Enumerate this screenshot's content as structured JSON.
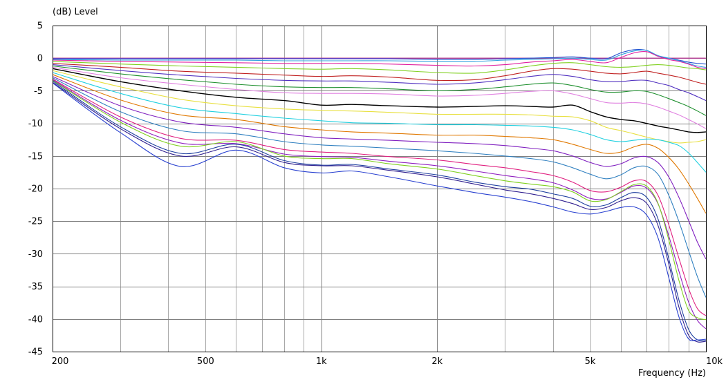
{
  "chart_data": {
    "type": "line",
    "ylabel": "(dB)  Level",
    "xlabel": "Frequency  (Hz)",
    "x_scale": "log",
    "xlim": [
      200,
      10000
    ],
    "ylim": [
      -45,
      5
    ],
    "grid": true,
    "legend": "none",
    "y_ticks": [
      5,
      0,
      -5,
      -10,
      -15,
      -20,
      -25,
      -30,
      -35,
      -40,
      -45
    ],
    "y_tick_labels": [
      "5",
      "0",
      "-5",
      "-10",
      "-15",
      "-20",
      "-25",
      "-30",
      "-35",
      "-40",
      "-45"
    ],
    "x_ticks": [
      200,
      500,
      1000,
      2000,
      5000,
      10000
    ],
    "x_tick_labels": [
      "200",
      "500",
      "1k",
      "2k",
      "5k",
      "10k"
    ],
    "x": [
      200,
      300,
      430,
      600,
      800,
      1000,
      1200,
      1500,
      2000,
      2500,
      3000,
      3500,
      4000,
      4500,
      5000,
      5500,
      6000,
      6500,
      7000,
      7500,
      8000,
      8500,
      9000,
      9500,
      10000
    ],
    "series": [
      {
        "color": "#e07000",
        "values": [
          0,
          0,
          0,
          0,
          0,
          0,
          0,
          0,
          0,
          0,
          0,
          0,
          0,
          0,
          0,
          0,
          0,
          0,
          0,
          0,
          0,
          0,
          0,
          0,
          0
        ]
      },
      {
        "color": "#b030b0",
        "values": [
          0,
          0,
          0,
          0,
          0,
          0,
          0,
          0,
          0,
          0,
          0,
          0,
          0,
          0,
          0,
          0,
          0,
          0,
          0,
          0,
          0,
          0,
          0,
          0,
          0
        ]
      },
      {
        "color": "#2050d0",
        "values": [
          -0.1,
          -0.1,
          -0.1,
          -0.1,
          -0.1,
          -0.1,
          -0.1,
          -0.1,
          -0.2,
          -0.2,
          -0.1,
          0,
          0.1,
          0.2,
          0,
          -0.1,
          0.8,
          1.3,
          1.2,
          0.3,
          0,
          -0.3,
          -0.6,
          -0.8,
          -0.9
        ]
      },
      {
        "color": "#30a0e0",
        "values": [
          -0.2,
          -0.3,
          -0.3,
          -0.3,
          -0.4,
          -0.4,
          -0.4,
          -0.4,
          -0.5,
          -0.5,
          -0.3,
          -0.2,
          -0.1,
          0,
          -0.2,
          -0.3,
          0.5,
          1.1,
          1.2,
          0.4,
          0,
          -0.4,
          -0.8,
          -1.2,
          -1.4
        ]
      },
      {
        "color": "#e020a0",
        "values": [
          -0.3,
          -0.5,
          -0.6,
          -0.7,
          -0.8,
          -0.8,
          -0.8,
          -0.9,
          -1.1,
          -1.2,
          -1,
          -0.6,
          -0.4,
          -0.2,
          -0.5,
          -0.7,
          0.1,
          0.8,
          1,
          0.3,
          -0.2,
          -0.5,
          -0.9,
          -1.4,
          -1.6
        ]
      },
      {
        "color": "#80d020",
        "values": [
          -0.5,
          -0.9,
          -1.2,
          -1.4,
          -1.6,
          -1.7,
          -1.6,
          -1.8,
          -2.2,
          -2.3,
          -1.8,
          -1.2,
          -0.8,
          -0.7,
          -1,
          -1.3,
          -1.4,
          -1.3,
          -1.1,
          -1,
          -1.1,
          -1.3,
          -1.5,
          -1.6,
          -1.8
        ]
      },
      {
        "color": "#c02020",
        "values": [
          -0.8,
          -1.4,
          -2,
          -2.3,
          -2.6,
          -2.8,
          -2.7,
          -2.9,
          -3.4,
          -3.3,
          -2.7,
          -2,
          -1.6,
          -1.7,
          -2,
          -2.3,
          -2.4,
          -2.2,
          -2,
          -2.3,
          -2.6,
          -2.9,
          -3.3,
          -3.7,
          -4
        ]
      },
      {
        "color": "#5030c0",
        "values": [
          -1,
          -1.9,
          -2.6,
          -3.1,
          -3.4,
          -3.5,
          -3.5,
          -3.7,
          -4,
          -3.8,
          -3.3,
          -2.8,
          -2.5,
          -2.8,
          -3.3,
          -3.6,
          -3.6,
          -3.4,
          -3.4,
          -3.8,
          -4.2,
          -4.8,
          -5.3,
          -5.9,
          -6.5
        ]
      },
      {
        "color": "#209030",
        "values": [
          -1.2,
          -2.4,
          -3.3,
          -4,
          -4.4,
          -4.5,
          -4.5,
          -4.7,
          -5,
          -4.8,
          -4.4,
          -4,
          -3.8,
          -4.2,
          -4.8,
          -5.2,
          -5.2,
          -5,
          -5.1,
          -5.6,
          -6.2,
          -6.8,
          -7.4,
          -8.1,
          -8.8
        ]
      },
      {
        "color": "#e080e0",
        "values": [
          -1.4,
          -3,
          -4,
          -4.8,
          -5.3,
          -5.4,
          -5.4,
          -5.5,
          -5.8,
          -5.7,
          -5.4,
          -5.1,
          -5,
          -5.5,
          -6.2,
          -6.8,
          -6.9,
          -6.8,
          -7,
          -7.5,
          -8.1,
          -8.7,
          -9.4,
          -10.1,
          -10.8
        ]
      },
      {
        "color": "#000000",
        "values": [
          -1.6,
          -3.6,
          -5,
          -6,
          -6.5,
          -7.2,
          -7.1,
          -7.3,
          -7.5,
          -7.4,
          -7.3,
          -7.4,
          -7.5,
          -7.2,
          -8.2,
          -9,
          -9.4,
          -9.6,
          -10,
          -10.4,
          -10.7,
          -11,
          -11.3,
          -11.4,
          -11.3
        ]
      },
      {
        "color": "#e8e040",
        "values": [
          -1.9,
          -4.4,
          -6.3,
          -7.3,
          -7.8,
          -8,
          -8.1,
          -8.3,
          -8.6,
          -8.6,
          -8.6,
          -8.7,
          -8.9,
          -9,
          -9.6,
          -10.6,
          -11.1,
          -11.6,
          -12.1,
          -12.5,
          -12.8,
          -13,
          -12.9,
          -12.8,
          -12.5
        ]
      },
      {
        "color": "#20d0e0",
        "values": [
          -2.2,
          -5.4,
          -7.6,
          -8.5,
          -9.2,
          -9.6,
          -9.9,
          -10,
          -10.2,
          -10.2,
          -10.3,
          -10.4,
          -10.6,
          -11,
          -11.7,
          -12.5,
          -12.8,
          -12.6,
          -12.4,
          -12.5,
          -12.9,
          -13.4,
          -14.5,
          -16,
          -17.5
        ]
      },
      {
        "color": "#e07800",
        "values": [
          -2.5,
          -6.4,
          -8.7,
          -9.4,
          -10.5,
          -11,
          -11.3,
          -11.5,
          -11.8,
          -11.8,
          -12,
          -12.2,
          -12.5,
          -13.2,
          -14,
          -14.6,
          -14.4,
          -13.6,
          -13.2,
          -13.8,
          -15.2,
          -17,
          -19.2,
          -21.5,
          -23.8
        ]
      },
      {
        "color": "#8020c0",
        "values": [
          -2.8,
          -7.3,
          -9.8,
          -10.6,
          -11.6,
          -12.2,
          -12.4,
          -12.6,
          -12.9,
          -13.1,
          -13.4,
          -13.8,
          -14.2,
          -15,
          -16,
          -16.6,
          -16.2,
          -15.3,
          -15.1,
          -16,
          -18.2,
          -21.3,
          -24.8,
          -28.2,
          -30.8
        ]
      },
      {
        "color": "#3080c0",
        "values": [
          -3,
          -8.2,
          -11.1,
          -11.6,
          -12.8,
          -13.3,
          -13.5,
          -13.8,
          -14.2,
          -14.6,
          -15,
          -15.4,
          -15.9,
          -16.8,
          -17.8,
          -18.5,
          -17.9,
          -16.8,
          -16.6,
          -17.8,
          -21,
          -25,
          -29.4,
          -33.5,
          -36.7
        ]
      },
      {
        "color": "#e02080",
        "values": [
          -3.2,
          -9,
          -12.3,
          -12.6,
          -14,
          -14.4,
          -14.6,
          -15.1,
          -15.6,
          -16.3,
          -16.8,
          -17.4,
          -18,
          -19,
          -20.3,
          -20.5,
          -19.8,
          -18.8,
          -18.9,
          -21,
          -25.5,
          -30.6,
          -35.2,
          -38.4,
          -39.5
        ]
      },
      {
        "color": "#9020c0",
        "values": [
          -3.3,
          -9.5,
          -13,
          -13.1,
          -14.7,
          -15.1,
          -15.2,
          -15.8,
          -16.5,
          -17.3,
          -18,
          -18.5,
          -19.1,
          -20.2,
          -21.5,
          -21.6,
          -20.6,
          -19.6,
          -19.9,
          -22.3,
          -27.2,
          -32.6,
          -37.3,
          -40.2,
          -41.5
        ]
      },
      {
        "color": "#80d020",
        "values": [
          -3.4,
          -9.8,
          -13.5,
          -12.8,
          -15,
          -15.4,
          -15.4,
          -16.2,
          -17,
          -18,
          -18.8,
          -19.3,
          -19.7,
          -20.5,
          -21.9,
          -21.7,
          -20.5,
          -19.4,
          -19.6,
          -22.2,
          -27.8,
          -34,
          -38.6,
          -39.8,
          -40.1
        ]
      },
      {
        "color": "#2040a0",
        "values": [
          -3.5,
          -10.5,
          -14.6,
          -13.2,
          -15.7,
          -16.4,
          -16.3,
          -17,
          -17.9,
          -19,
          -19.7,
          -20.1,
          -20.8,
          -21.5,
          -22.7,
          -22.5,
          -21.4,
          -20.6,
          -21.3,
          -24.6,
          -30.7,
          -37,
          -41.5,
          -43.2,
          -43.3
        ]
      },
      {
        "color": "#302090",
        "values": [
          -3.7,
          -10.8,
          -15,
          -13.6,
          -16,
          -16.5,
          -16.5,
          -17.2,
          -18.2,
          -19.3,
          -20.2,
          -20.8,
          -21.5,
          -22.3,
          -23.2,
          -22.9,
          -21.9,
          -21.4,
          -22.2,
          -25.6,
          -31.5,
          -38.1,
          -42.4,
          -43.5,
          -43.4
        ]
      },
      {
        "color": "#2840d0",
        "values": [
          -3.8,
          -11.4,
          -16.6,
          -14.1,
          -16.8,
          -17.6,
          -17.3,
          -18.2,
          -19.6,
          -20.6,
          -21.3,
          -22,
          -22.8,
          -23.6,
          -23.9,
          -23.5,
          -22.9,
          -22.8,
          -24,
          -27.5,
          -33.6,
          -39.6,
          -43,
          -43.2,
          -43.1
        ]
      }
    ]
  }
}
